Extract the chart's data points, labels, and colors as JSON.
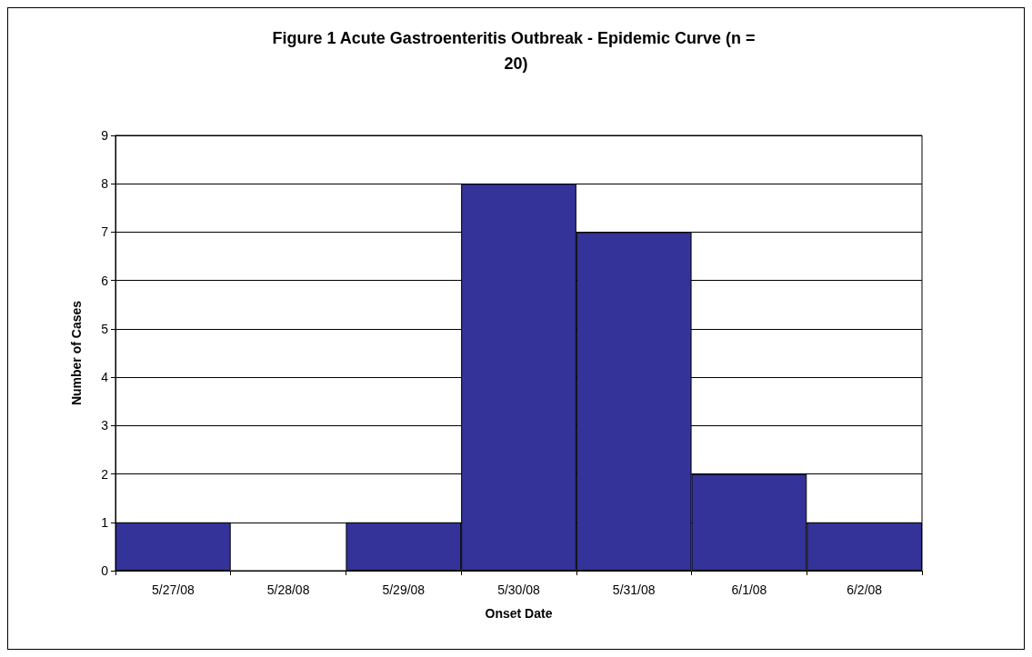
{
  "chart_data": {
    "type": "bar",
    "title": "Figure 1 Acute Gastroenteritis Outbreak - Epidemic Curve (n = 20)",
    "xlabel": "Onset Date",
    "ylabel": "Number of Cases",
    "categories": [
      "5/27/08",
      "5/28/08",
      "5/29/08",
      "5/30/08",
      "5/31/08",
      "6/1/08",
      "6/2/08"
    ],
    "values": [
      1,
      0,
      1,
      8,
      7,
      2,
      1
    ],
    "color": "#333399",
    "ylim": [
      0,
      9
    ],
    "yticks": [
      0,
      1,
      2,
      3,
      4,
      5,
      6,
      7,
      8,
      9
    ],
    "grid": "y"
  }
}
